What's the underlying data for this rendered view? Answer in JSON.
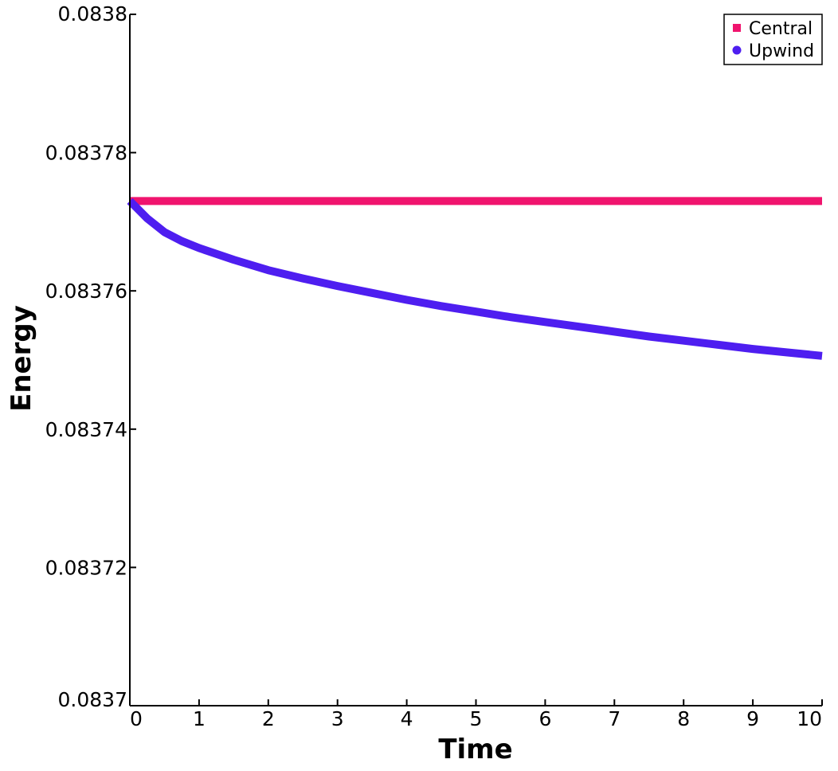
{
  "chart_data": {
    "type": "line",
    "xlabel": "Time",
    "ylabel": "Energy",
    "xlim": [
      0,
      10
    ],
    "ylim": [
      0.0837,
      0.0838
    ],
    "x_ticks": [
      "0",
      "1",
      "2",
      "3",
      "4",
      "5",
      "6",
      "7",
      "8",
      "9",
      "10"
    ],
    "y_ticks": [
      "0.0837",
      "0.08372",
      "0.08374",
      "0.08376",
      "0.08378",
      "0.0838"
    ],
    "grid": false,
    "legend_position": "top-right",
    "series": [
      {
        "name": "Central",
        "color": "#f0146e",
        "marker": "square",
        "x": [
          0,
          1,
          2,
          3,
          4,
          5,
          6,
          7,
          8,
          9,
          10
        ],
        "y": [
          0.083773,
          0.083773,
          0.083773,
          0.083773,
          0.083773,
          0.083773,
          0.083773,
          0.083773,
          0.083773,
          0.083773,
          0.083773
        ]
      },
      {
        "name": "Upwind",
        "color": "#4e1ef0",
        "marker": "circle",
        "x": [
          0,
          0.1,
          0.25,
          0.5,
          0.75,
          1,
          1.5,
          2,
          2.5,
          3,
          3.5,
          4,
          4.5,
          5,
          5.5,
          6,
          6.5,
          7,
          7.5,
          8,
          8.5,
          9,
          9.5,
          10
        ],
        "y": [
          0.083773,
          0.083772,
          0.0837705,
          0.0837685,
          0.0837672,
          0.0837662,
          0.0837645,
          0.083763,
          0.0837618,
          0.0837607,
          0.0837597,
          0.0837587,
          0.0837578,
          0.083757,
          0.0837562,
          0.0837555,
          0.0837548,
          0.0837541,
          0.0837534,
          0.0837528,
          0.0837522,
          0.0837516,
          0.0837511,
          0.0837506
        ]
      }
    ]
  }
}
